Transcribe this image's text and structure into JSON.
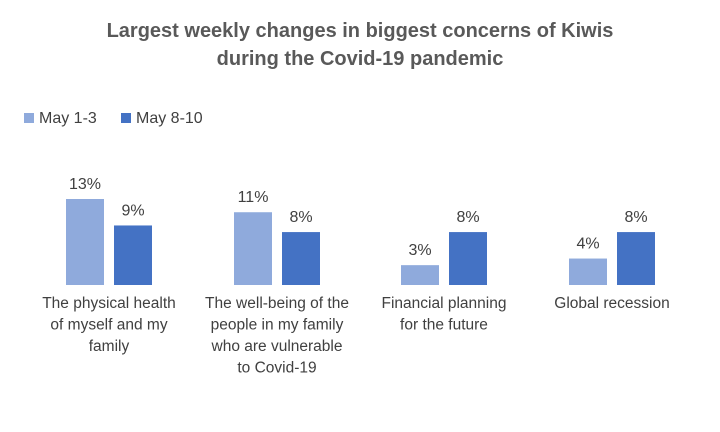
{
  "chart_data": {
    "type": "bar",
    "title_lines": [
      "Largest weekly changes in biggest concerns of Kiwis",
      "during the Covid-19 pandemic"
    ],
    "categories": [
      [
        "The physical health",
        "of myself and my",
        "family"
      ],
      [
        "The well-being of the",
        "people in my family",
        "who are vulnerable",
        "to Covid-19"
      ],
      [
        "Financial planning",
        "for the future"
      ],
      [
        "Global recession"
      ]
    ],
    "series": [
      {
        "name": "May 1-3",
        "values": [
          13,
          11,
          3,
          4
        ],
        "labels": [
          "13%",
          "11%",
          "3%",
          "4%"
        ],
        "color": "#8faadc"
      },
      {
        "name": "May 8-10",
        "values": [
          9,
          8,
          8,
          8
        ],
        "labels": [
          "9%",
          "8%",
          "8%",
          "8%"
        ],
        "color": "#4472c4"
      }
    ],
    "ylim": [
      0,
      14
    ],
    "legend_position": "top-left",
    "grid": false,
    "xlabel": "",
    "ylabel": ""
  }
}
